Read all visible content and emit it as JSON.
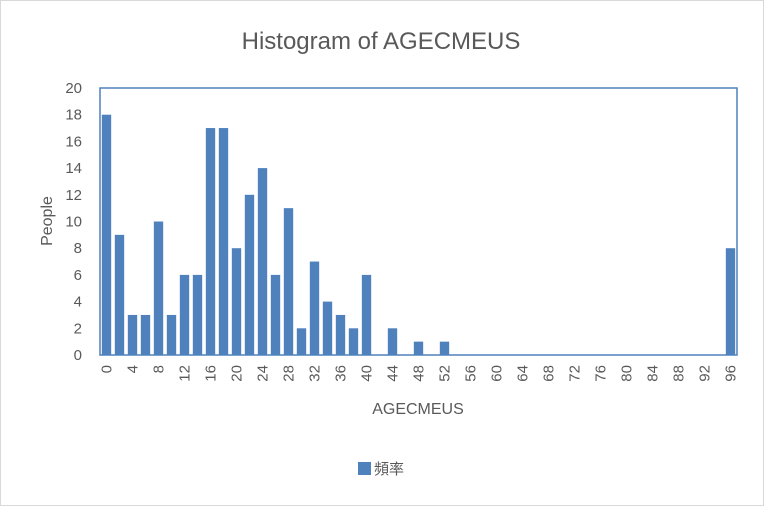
{
  "chart_data": {
    "type": "bar",
    "title": "Histogram of AGECMEUS",
    "xlabel": "AGECMEUS",
    "ylabel": "People",
    "ylim": [
      0,
      20
    ],
    "yticks": [
      "0",
      "2",
      "4",
      "6",
      "8",
      "10",
      "12",
      "14",
      "16",
      "18",
      "20"
    ],
    "xticks": [
      "0",
      "4",
      "8",
      "12",
      "16",
      "20",
      "24",
      "28",
      "32",
      "36",
      "40",
      "44",
      "48",
      "52",
      "56",
      "60",
      "64",
      "68",
      "72",
      "76",
      "80",
      "84",
      "88",
      "92",
      "96"
    ],
    "categories": [
      "0",
      "2",
      "4",
      "6",
      "8",
      "10",
      "12",
      "14",
      "16",
      "18",
      "20",
      "22",
      "24",
      "26",
      "28",
      "30",
      "32",
      "34",
      "36",
      "38",
      "40",
      "42",
      "44",
      "46",
      "48",
      "50",
      "52",
      "54",
      "56",
      "58",
      "60",
      "62",
      "64",
      "66",
      "68",
      "70",
      "72",
      "74",
      "76",
      "78",
      "80",
      "82",
      "84",
      "86",
      "88",
      "90",
      "92",
      "94",
      "96"
    ],
    "series": [
      {
        "name": "頻率",
        "color": "#4f81bd",
        "values": [
          18,
          9,
          3,
          3,
          10,
          3,
          6,
          6,
          17,
          17,
          8,
          12,
          14,
          6,
          11,
          2,
          7,
          4,
          3,
          2,
          6,
          0,
          2,
          0,
          1,
          0,
          1,
          0,
          0,
          0,
          0,
          0,
          0,
          0,
          0,
          0,
          0,
          0,
          0,
          0,
          0,
          0,
          0,
          0,
          0,
          0,
          0,
          0,
          8
        ]
      }
    ],
    "legend_position": "bottom",
    "grid": false
  }
}
